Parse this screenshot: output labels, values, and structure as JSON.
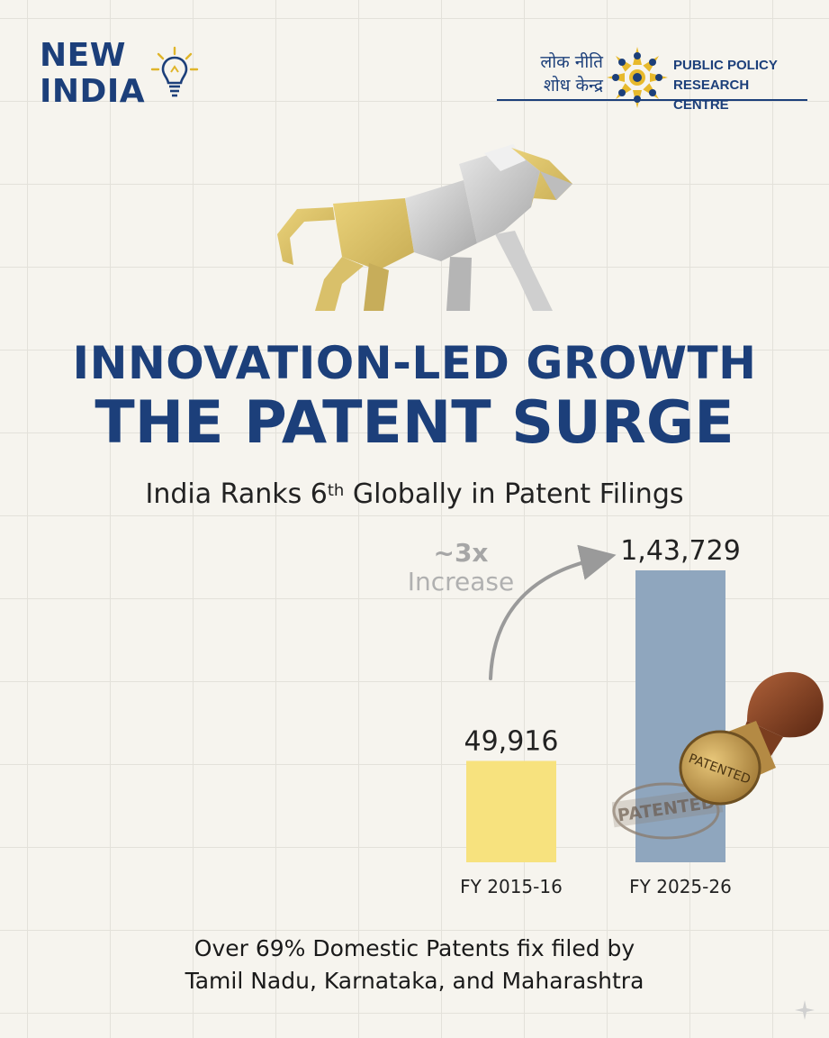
{
  "brand": {
    "line1": "NEW",
    "line2": "INDIA",
    "icon": "lightbulb-icon"
  },
  "partner_logo": {
    "hindi_line1": "लोक नीति",
    "hindi_line2": "शोध केन्द्र",
    "english": "PUBLIC POLICY\nRESEARCH CENTRE",
    "icon": "sunburst-people-emblem"
  },
  "title_line1": "INNOVATION-LED GROWTH",
  "title_line2": "THE PATENT SURGE",
  "subtitle": {
    "before": "India Ranks 6",
    "sup": "th",
    "after": " Globally in Patent Filings"
  },
  "chart_data": {
    "type": "bar",
    "categories": [
      "FY 2015-16",
      "FY 2025-26"
    ],
    "values": [
      49916,
      143729
    ],
    "value_labels": [
      "49,916",
      "1,43,729"
    ],
    "annotation": {
      "line1": "~3x",
      "line2": "Increase"
    },
    "colors": [
      "#f7e27e",
      "#8fa6be"
    ]
  },
  "stamp": {
    "text_top": "PATENTED",
    "text_imprint": "PATENTED"
  },
  "footer": {
    "line1": "Over 69% Domestic Patents fix filed by",
    "line2": "Tamil Nadu, Karnataka, and Maharashtra"
  },
  "colors": {
    "navy": "#1c3f7a",
    "gold": "#e7c84d",
    "background": "#f6f4ee"
  }
}
